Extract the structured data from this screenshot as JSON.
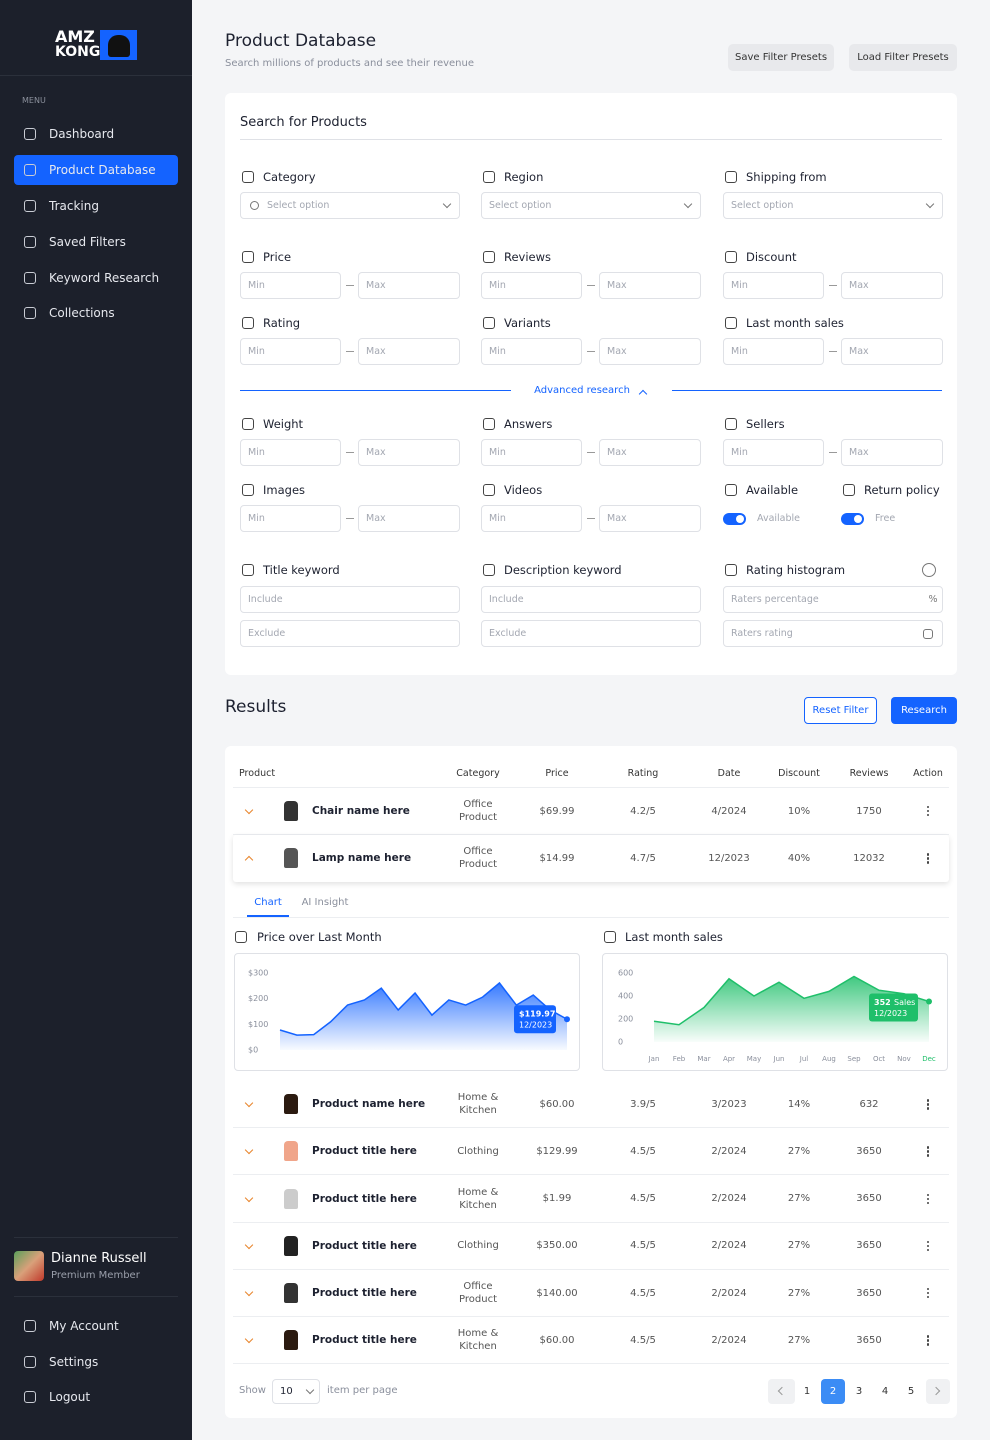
{
  "sidebar": {
    "logo": {
      "line1": "AMZ",
      "line2": "KONG"
    },
    "menu_label": "MENU",
    "nav": [
      "Dashboard",
      "Product Database",
      "Tracking",
      "Saved Filters",
      "Keyword Research",
      "Collections"
    ],
    "active": 1,
    "user": {
      "name": "Dianne Russell",
      "role": "Premium Member"
    },
    "footer_nav": [
      "My Account",
      "Settings",
      "Logout"
    ]
  },
  "header": {
    "title": "Product Database",
    "subtitle": "Search millions of products and see their revenue",
    "buttons": [
      "Save Filter Presets",
      "Load Filter Presets"
    ]
  },
  "search": {
    "title": "Search for Products",
    "fields": [
      {
        "label": "Category",
        "kind": "select",
        "placeholders": [
          "Select option"
        ]
      },
      {
        "label": "Region",
        "kind": "select",
        "placeholders": [
          "Select option"
        ]
      },
      {
        "label": "Shipping from",
        "kind": "select",
        "placeholders": [
          "Select option"
        ]
      },
      {
        "label": "Price",
        "kind": "range",
        "placeholders": [
          "Min",
          "Max"
        ]
      },
      {
        "label": "Reviews",
        "kind": "range",
        "placeholders": [
          "Min",
          "Max"
        ]
      },
      {
        "label": "Discount",
        "kind": "range",
        "placeholders": [
          "Min",
          "Max"
        ]
      },
      {
        "label": "Rating",
        "kind": "range",
        "placeholders": [
          "Min",
          "Max"
        ]
      },
      {
        "label": "Variants",
        "kind": "range",
        "placeholders": [
          "Min",
          "Max"
        ]
      },
      {
        "label": "Last month sales",
        "kind": "range",
        "placeholders": [
          "Min",
          "Max"
        ]
      }
    ],
    "advanced_label": "Advanced research",
    "advanced_fields": [
      {
        "label": "Weight",
        "kind": "range",
        "placeholders": [
          "Min",
          "Max"
        ]
      },
      {
        "label": "Answers",
        "kind": "range",
        "placeholders": [
          "Min",
          "Max"
        ]
      },
      {
        "label": "Sellers",
        "kind": "range",
        "placeholders": [
          "Min",
          "Max"
        ]
      },
      {
        "label": "Images",
        "kind": "range",
        "placeholders": [
          "Min",
          "Max"
        ]
      },
      {
        "label": "Videos",
        "kind": "range",
        "placeholders": [
          "Min",
          "Max"
        ]
      },
      {
        "label": "Available",
        "kind": "toggle",
        "placeholders": [
          "Available"
        ]
      },
      {
        "label": "Return policy",
        "kind": "toggle",
        "placeholders": [
          "Free"
        ]
      },
      {
        "label": "Title keyword",
        "kind": "text",
        "placeholders": [
          "Include",
          "Exclude"
        ]
      },
      {
        "label": "Description keyword",
        "kind": "text",
        "placeholders": [
          "Include",
          "Exclude"
        ]
      },
      {
        "label": "Rating histogram",
        "kind": "text",
        "placeholders": [
          "Raters percentage",
          "Raters rating"
        ],
        "suffix": "%"
      }
    ]
  },
  "results": {
    "title": "Results",
    "buttons": [
      "Reset Filter",
      "Research"
    ],
    "columns": [
      "Product",
      "Category",
      "Price",
      "Rating",
      "Date",
      "Discount",
      "Reviews",
      "Action"
    ],
    "rows": [
      [
        "Chair name here",
        "Office Product",
        "$69.99",
        "4.2/5",
        "4/2024",
        "10%",
        1750
      ],
      [
        "Lamp name here",
        "Office Product",
        "$14.99",
        "4.7/5",
        "12/2023",
        "40%",
        12032
      ],
      [
        "Product name here",
        "Home & Kitchen",
        "$60.00",
        "3.9/5",
        "3/2023",
        "14%",
        632
      ],
      [
        "Product title here",
        "Clothing",
        "$129.99",
        "4.5/5",
        "2/2024",
        "27%",
        3650
      ],
      [
        "Product title here",
        "Home & Kitchen",
        "$1.99",
        "4.5/5",
        "2/2024",
        "27%",
        3650
      ],
      [
        "Product title here",
        "Clothing",
        "$350.00",
        "4.5/5",
        "2/2024",
        "27%",
        3650
      ],
      [
        "Product title here",
        "Office Product",
        "$140.00",
        "4.5/5",
        "2/2024",
        "27%",
        3650
      ],
      [
        "Product title here",
        "Home & Kitchen",
        "$60.00",
        "4.5/5",
        "2/2024",
        "27%",
        3650
      ]
    ],
    "expanded_row": 1,
    "tabs": [
      "Chart",
      "AI Insight"
    ],
    "active_tab": 0,
    "charts": [
      {
        "type": "area",
        "title": "Price over Last Month",
        "color": "#1463ff",
        "values": [
          78,
          58,
          60,
          110,
          175,
          195,
          241,
          156,
          222,
          136,
          195,
          175,
          206,
          261,
          175,
          214,
          156,
          119.97
        ],
        "ylim": [
          0,
          300
        ],
        "yticks": [
          {
            "value": 0,
            "label": "$0"
          },
          {
            "value": 100,
            "label": "$100"
          },
          {
            "value": 200,
            "label": "$200"
          },
          {
            "value": 300,
            "label": "$300"
          }
        ],
        "tooltip": {
          "label": "$119.97",
          "date": "12/2023"
        }
      },
      {
        "type": "area",
        "title": "Last month sales",
        "color": "#1fbf6a",
        "categories": [
          "Jan",
          "Feb",
          "Mar",
          "Apr",
          "May",
          "Jun",
          "Jul",
          "Aug",
          "Sep",
          "Oct",
          "Nov",
          "Dec"
        ],
        "values": [
          180,
          150,
          300,
          550,
          400,
          520,
          380,
          440,
          570,
          450,
          420,
          352
        ],
        "ylim": [
          0,
          600
        ],
        "yticks": [
          0,
          200,
          400,
          600
        ],
        "tooltip": {
          "label": "352",
          "unit": "Sales",
          "date": "12/2023"
        }
      }
    ]
  },
  "pagination": {
    "show": "Show",
    "per_page": 10,
    "per_page_label": "item per page",
    "pages": [
      1,
      2,
      3,
      4,
      5
    ],
    "current": 1
  }
}
